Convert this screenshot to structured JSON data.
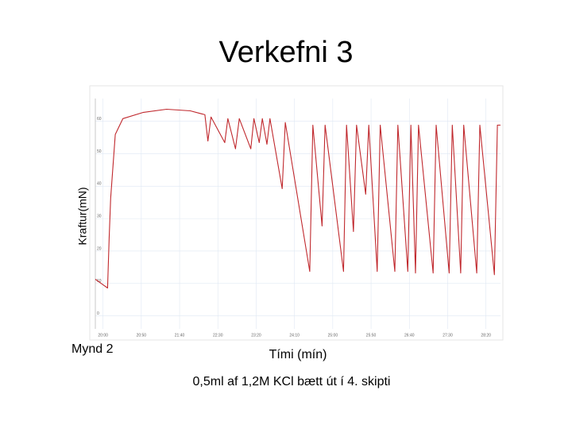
{
  "chart_data": {
    "type": "line",
    "title": "Verkefni 3",
    "y_label": "Kraftur(mN)",
    "x_label": "Tími (mín)",
    "figure_label": "Mynd 2",
    "caption": "0,5ml af 1,2M KCl bætt út í 4. skipti",
    "color": "#c0282d",
    "grid": true,
    "xlim": [
      1190,
      1719
    ],
    "ylim": [
      -4,
      67
    ],
    "xticks": [
      {
        "value": 1200,
        "label": "20:00"
      },
      {
        "value": 1250,
        "label": "20:50"
      },
      {
        "value": 1300,
        "label": "21:40"
      },
      {
        "value": 1350,
        "label": "22:30"
      },
      {
        "value": 1400,
        "label": "23:20"
      },
      {
        "value": 1450,
        "label": "24:10"
      },
      {
        "value": 1500,
        "label": "25:00"
      },
      {
        "value": 1550,
        "label": "25:50"
      },
      {
        "value": 1600,
        "label": "26:40"
      },
      {
        "value": 1650,
        "label": "27:30"
      },
      {
        "value": 1700,
        "label": "28:20"
      }
    ],
    "yticks": [
      0,
      10,
      20,
      30,
      40,
      50,
      60
    ],
    "x": [
      1190,
      1206,
      1208,
      1210,
      1216,
      1226,
      1252,
      1283,
      1314,
      1333,
      1337,
      1341,
      1359,
      1363,
      1373,
      1378,
      1393,
      1397,
      1404,
      1408,
      1414,
      1418,
      1434,
      1438,
      1470,
      1474,
      1486,
      1490,
      1514,
      1518,
      1527,
      1531,
      1543,
      1547,
      1558,
      1562,
      1581,
      1585,
      1598,
      1602,
      1608,
      1612,
      1631,
      1635,
      1652,
      1656,
      1667,
      1671,
      1688,
      1692,
      1711,
      1715,
      1719
    ],
    "values": [
      11.3,
      8.6,
      24.0,
      36.3,
      55.9,
      60.8,
      62.7,
      63.7,
      63.2,
      62.0,
      53.9,
      61.3,
      53.4,
      60.8,
      51.5,
      60.8,
      51.5,
      60.8,
      53.4,
      60.8,
      52.9,
      60.8,
      39.2,
      59.6,
      13.7,
      58.8,
      27.7,
      58.8,
      13.7,
      58.8,
      26.0,
      58.8,
      37.5,
      58.8,
      13.7,
      58.8,
      13.7,
      58.8,
      13.7,
      58.8,
      13.2,
      58.8,
      13.2,
      58.8,
      13.2,
      58.8,
      13.2,
      58.8,
      13.2,
      58.8,
      12.7,
      58.8,
      58.8
    ]
  }
}
